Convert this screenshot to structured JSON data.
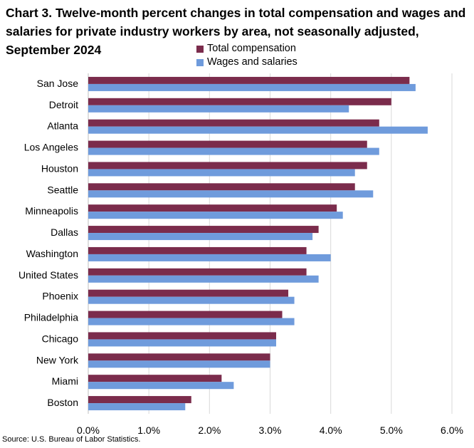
{
  "title_lines": [
    "Chart 3. Twelve-month percent changes in total compensation and wages and",
    "salaries for private industry workers by area, not seasonally adjusted,",
    "September 2024"
  ],
  "source": "Source: U.S. Bureau of Labor Statistics.",
  "legend": [
    {
      "label": "Total compensation",
      "color": "#7b2c4c"
    },
    {
      "label": "Wages and salaries",
      "color": "#6f9bdc"
    }
  ],
  "chart_data": {
    "type": "bar",
    "orientation": "horizontal",
    "title": "Chart 3. Twelve-month percent changes in total compensation and wages and salaries for private industry workers by area, not seasonally adjusted, September 2024",
    "categories": [
      "San Jose",
      "Detroit",
      "Atlanta",
      "Los Angeles",
      "Houston",
      "Seattle",
      "Minneapolis",
      "Dallas",
      "Washington",
      "United States",
      "Phoenix",
      "Philadelphia",
      "Chicago",
      "New York",
      "Miami",
      "Boston"
    ],
    "series": [
      {
        "name": "Total compensation",
        "color": "#7b2c4c",
        "values": [
          5.3,
          5.0,
          4.8,
          4.6,
          4.6,
          4.4,
          4.1,
          3.8,
          3.6,
          3.6,
          3.3,
          3.2,
          3.1,
          3.0,
          2.2,
          1.7
        ]
      },
      {
        "name": "Wages and salaries",
        "color": "#6f9bdc",
        "values": [
          5.4,
          4.3,
          5.6,
          4.8,
          4.4,
          4.7,
          4.2,
          3.7,
          4.0,
          3.8,
          3.4,
          3.4,
          3.1,
          3.0,
          2.4,
          1.6
        ]
      }
    ],
    "xlim": [
      0,
      6
    ],
    "xticks": [
      "0.0%",
      "1.0%",
      "2.0%",
      "3.0%",
      "4.0%",
      "5.0%",
      "6.0%"
    ],
    "grid": true,
    "legend_position": "top-center"
  }
}
